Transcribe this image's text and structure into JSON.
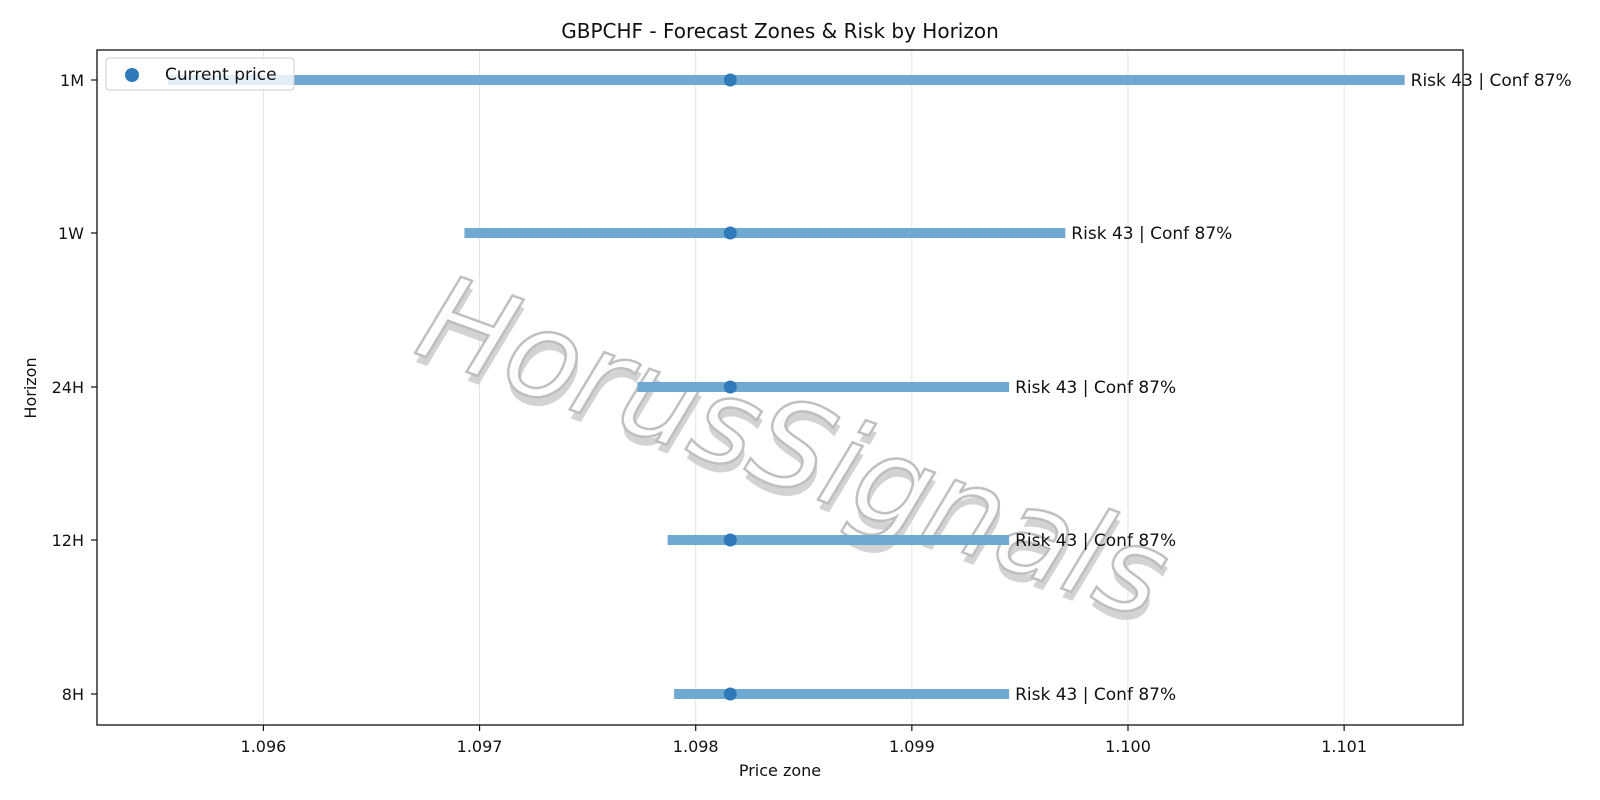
{
  "chart_data": {
    "type": "range-bar",
    "title": "GBPCHF - Forecast Zones & Risk by Horizon",
    "xlabel": "Price zone",
    "ylabel": "Horizon",
    "xlim": [
      1.09523,
      1.10155
    ],
    "x_ticks": [
      "1.096",
      "1.097",
      "1.098",
      "1.099",
      "1.100",
      "1.101"
    ],
    "grid_x": true,
    "legend": {
      "placement": "top-left",
      "entries": [
        {
          "marker": "dot",
          "label": "Current price"
        }
      ]
    },
    "current_price": 1.09816,
    "series_color": "#6fa8d0",
    "point_color": "#2f7ab9",
    "rows": [
      {
        "horizon": "1M",
        "low": 1.09556,
        "high": 1.10128,
        "annotation": "Risk 43 | Conf 87%"
      },
      {
        "horizon": "1W",
        "low": 1.09693,
        "high": 1.09971,
        "annotation": "Risk 43 | Conf 87%"
      },
      {
        "horizon": "24H",
        "low": 1.09773,
        "high": 1.09945,
        "annotation": "Risk 43 | Conf 87%"
      },
      {
        "horizon": "12H",
        "low": 1.09787,
        "high": 1.09945,
        "annotation": "Risk 43 | Conf 87%"
      },
      {
        "horizon": "8H",
        "low": 1.0979,
        "high": 1.09945,
        "annotation": "Risk 43 | Conf 87%"
      }
    ]
  },
  "watermark": {
    "text": "HorusSignals"
  }
}
